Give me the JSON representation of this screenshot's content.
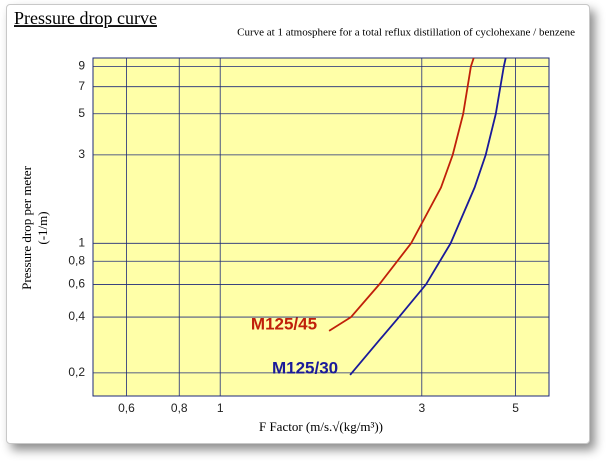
{
  "chart_data": {
    "type": "line",
    "title": "Pressure drop curve",
    "subtitle": "Curve at 1 atmosphere for a total reflux distillation of cyclohexane / benzene",
    "x_label": "F Factor (m/s.√(kg/m³))",
    "y_label": "Pressure drop per meter",
    "y_unit": "(-1/m)",
    "xscale": "log",
    "yscale": "log",
    "grid": true,
    "background": "#ffffa8",
    "xlim": [
      0.5,
      6
    ],
    "ylim": [
      0.15,
      10
    ],
    "xticks": [
      {
        "value": 0.6,
        "label": "0,6"
      },
      {
        "value": 0.8,
        "label": "0,8"
      },
      1,
      3,
      5
    ],
    "yticks": [
      {
        "value": 0.2,
        "label": "0,2"
      },
      {
        "value": 0.4,
        "label": "0,4"
      },
      {
        "value": 0.6,
        "label": "0,6"
      },
      {
        "value": 0.8,
        "label": "0,8"
      },
      1,
      3,
      5,
      7,
      9
    ],
    "series": [
      {
        "name": "M125/45",
        "color": "#c0200a",
        "x": [
          1.81,
          2.04,
          2.38,
          2.83,
          3.33,
          3.55,
          3.76,
          3.92,
          3.98
        ],
        "values": [
          0.337,
          0.4,
          0.6,
          1,
          2,
          3,
          5,
          9,
          10
        ]
      },
      {
        "name": "M125/30",
        "color": "#1a1a9a",
        "x": [
          2.03,
          2.38,
          2.65,
          3.07,
          3.51,
          4.0,
          4.25,
          4.49,
          4.69,
          4.74
        ],
        "values": [
          0.195,
          0.3,
          0.4,
          0.6,
          1,
          2,
          3,
          5,
          9,
          10
        ]
      }
    ]
  }
}
